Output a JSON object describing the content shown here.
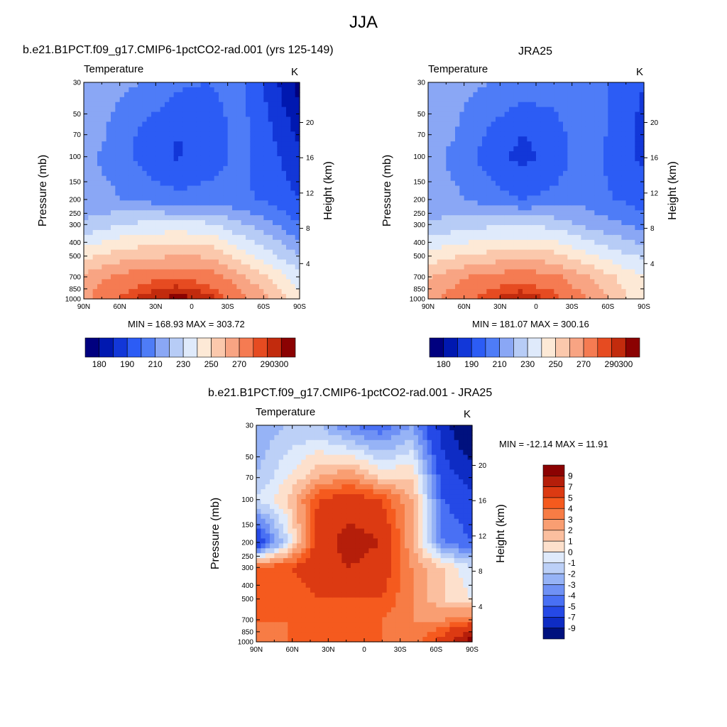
{
  "figure": {
    "title": "JJA"
  },
  "panels": [
    {
      "id": "model",
      "title": "b.e21.B1PCT.f09_g17.CMIP6-1pctCO2-rad.001 (yrs 125-149)",
      "variable": "Temperature",
      "units": "K",
      "ylabel": "Pressure (mb)",
      "y2label": "Height (km)",
      "minmax": "MIN = 168.93  MAX = 303.72",
      "colorbar": {
        "orientation": "horizontal",
        "labels": [
          "180",
          "190",
          "210",
          "230",
          "250",
          "270",
          "290",
          "300"
        ],
        "colors": [
          "#00007f",
          "#0018b0",
          "#1237d8",
          "#2c5cf5",
          "#4e7cf7",
          "#8aa7f5",
          "#b7ccf6",
          "#dfeafb",
          "#fde9d6",
          "#fbc8ac",
          "#f8a483",
          "#f57b52",
          "#e64b21",
          "#c22b0d",
          "#8b0202"
        ]
      }
    },
    {
      "id": "obs",
      "title": "JRA25",
      "variable": "Temperature",
      "units": "K",
      "ylabel": "Pressure (mb)",
      "y2label": "Height (km)",
      "minmax": "MIN = 181.07  MAX = 300.16",
      "colorbar": {
        "orientation": "horizontal",
        "labels": [
          "180",
          "190",
          "210",
          "230",
          "250",
          "270",
          "290",
          "300"
        ],
        "colors": [
          "#00007f",
          "#0018b0",
          "#1237d8",
          "#2c5cf5",
          "#4e7cf7",
          "#8aa7f5",
          "#b7ccf6",
          "#dfeafb",
          "#fde9d6",
          "#fbc8ac",
          "#f8a483",
          "#f57b52",
          "#e64b21",
          "#c22b0d",
          "#8b0202"
        ]
      }
    },
    {
      "id": "diff",
      "title": "b.e21.B1PCT.f09_g17.CMIP6-1pctCO2-rad.001 - JRA25",
      "variable": "Temperature",
      "units": "K",
      "ylabel": "Pressure (mb)",
      "y2label": "Height (km)",
      "minmax": "MIN = -12.14  MAX =  11.91",
      "colorbar": {
        "orientation": "vertical",
        "labels": [
          "9",
          "7",
          "5",
          "4",
          "3",
          "2",
          "1",
          "0",
          "-1",
          "-2",
          "-3",
          "-4",
          "-5",
          "-7",
          "-9"
        ],
        "colors": [
          "#8b0202",
          "#b51e0a",
          "#dc3a12",
          "#f55a1e",
          "#f77c45",
          "#f99e72",
          "#fbbf9f",
          "#fde0cc",
          "#dfeafb",
          "#bcd0f7",
          "#96b3f6",
          "#6f91f5",
          "#4970f4",
          "#2549e6",
          "#0e2cc4",
          "#00117e"
        ]
      }
    }
  ],
  "chart_data": {
    "type": "heatmap",
    "x_tick_labels": [
      "90N",
      "60N",
      "30N",
      "0",
      "30S",
      "60S",
      "90S"
    ],
    "x_tick_values": [
      90,
      60,
      30,
      0,
      -30,
      -60,
      -90
    ],
    "y_tick_labels": [
      "30",
      "50",
      "70",
      "100",
      "150",
      "200",
      "250",
      "300",
      "400",
      "500",
      "700",
      "850",
      "1000"
    ],
    "y_tick_values": [
      30,
      50,
      70,
      100,
      150,
      200,
      250,
      300,
      400,
      500,
      700,
      850,
      1000
    ],
    "y_scale": "log",
    "ylim": [
      30,
      1000
    ],
    "y2_tick_labels": [
      "4",
      "8",
      "12",
      "16",
      "20"
    ],
    "y2_tick_values": [
      4,
      8,
      12,
      16,
      20
    ],
    "series": [
      {
        "name": "b.e21.B1PCT.f09_g17.CMIP6-1pctCO2-rad.001 (yrs 125-149)",
        "min": 168.93,
        "max": 303.72,
        "field": [
          {
            "p": 30,
            "vals": [
              222,
              222,
              220,
              212,
              210,
              214,
              195,
              175
            ]
          },
          {
            "p": 70,
            "vals": [
              225,
              218,
              206,
              200,
              203,
              214,
              201,
              188
            ]
          },
          {
            "p": 100,
            "vals": [
              222,
              217,
              205,
              199,
              204,
              213,
              203,
              192
            ]
          },
          {
            "p": 200,
            "vals": [
              223,
              221,
              217,
              213,
              215,
              212,
              208,
              200
            ]
          },
          {
            "p": 300,
            "vals": [
              232,
              239,
              243,
              244,
              242,
              232,
              222,
              210
            ]
          },
          {
            "p": 500,
            "vals": [
              257,
              264,
              268,
              270,
              269,
              256,
              243,
              230
            ]
          },
          {
            "p": 700,
            "vals": [
              272,
              282,
              287,
              289,
              286,
              274,
              258,
              244
            ]
          },
          {
            "p": 1000,
            "vals": [
              278,
              290,
              298,
              303,
              298,
              285,
              270,
              252
            ]
          }
        ]
      },
      {
        "name": "JRA25",
        "min": 181.07,
        "max": 300.16,
        "field": [
          {
            "p": 30,
            "vals": [
              225,
              223,
              220,
              216,
              216,
              218,
              208,
              200
            ]
          },
          {
            "p": 70,
            "vals": [
              226,
              219,
              208,
              200,
              204,
              218,
              207,
              196
            ]
          },
          {
            "p": 100,
            "vals": [
              223,
              217,
              204,
              197,
              203,
              216,
              205,
              198
            ]
          },
          {
            "p": 200,
            "vals": [
              223,
              221,
              215,
              210,
              213,
              216,
              210,
              205
            ]
          },
          {
            "p": 300,
            "vals": [
              231,
              235,
              238,
              239,
              237,
              228,
              222,
              216
            ]
          },
          {
            "p": 500,
            "vals": [
              254,
              260,
              264,
              266,
              264,
              254,
              244,
              238
            ]
          },
          {
            "p": 700,
            "vals": [
              268,
              278,
              284,
              286,
              283,
              272,
              260,
              250
            ]
          },
          {
            "p": 1000,
            "vals": [
              276,
              287,
              295,
              300,
              294,
              282,
              266,
              252
            ]
          }
        ]
      },
      {
        "name": "b.e21.B1PCT.f09_g17.CMIP6-1pctCO2-rad.001 - JRA25",
        "min": -12.14,
        "max": 11.91,
        "field": [
          {
            "p": 30,
            "vals": [
              -3,
              -2,
              -2,
              -4,
              -5,
              -3,
              -8,
              -12
            ]
          },
          {
            "p": 70,
            "vals": [
              -2,
              0,
              2,
              3,
              1,
              1,
              -6,
              -8
            ]
          },
          {
            "p": 100,
            "vals": [
              -1,
              1,
              5,
              6,
              5,
              2,
              -5,
              -6
            ]
          },
          {
            "p": 200,
            "vals": [
              -7,
              -1,
              6,
              8,
              7,
              2,
              -4,
              -5
            ]
          },
          {
            "p": 300,
            "vals": [
              4,
              5,
              6,
              7,
              6,
              3,
              1,
              -1
            ]
          },
          {
            "p": 500,
            "vals": [
              4,
              4,
              5,
              5,
              5,
              3,
              1,
              0
            ]
          },
          {
            "p": 700,
            "vals": [
              4,
              4,
              4,
              4,
              4,
              3,
              3,
              4
            ]
          },
          {
            "p": 1000,
            "vals": [
              3,
              4,
              4,
              4,
              4,
              3,
              6,
              10
            ]
          }
        ]
      }
    ]
  }
}
